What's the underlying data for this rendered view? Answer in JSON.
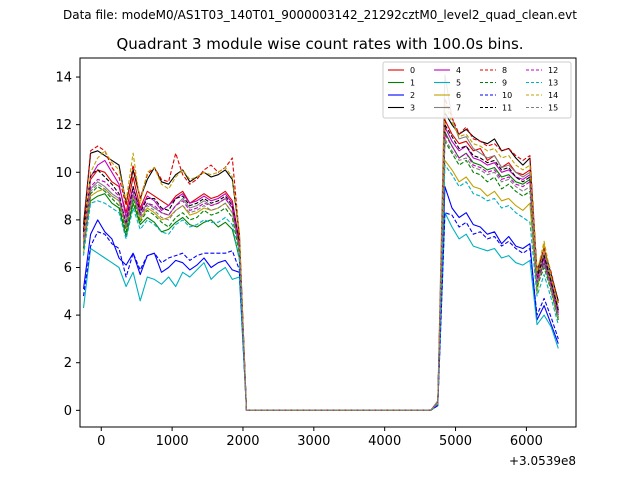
{
  "suptitle": "Data file: modeM0/AS1T03_140T01_9000003142_21292cztM0_level2_quad_clean.evt",
  "chart_data": {
    "type": "line",
    "title": "Quadrant 3 module wise count rates with 100.0s bins.",
    "xlabel": "",
    "ylabel": "",
    "offset_text": "+3.0539e8",
    "xlim": [
      -300,
      6700
    ],
    "ylim": [
      -0.7,
      14.8
    ],
    "xticks": [
      0,
      1000,
      2000,
      3000,
      4000,
      5000,
      6000
    ],
    "xtick_labels": [
      "0",
      "1000",
      "2000",
      "3000",
      "4000",
      "5000",
      "6000"
    ],
    "yticks": [
      0,
      2,
      4,
      6,
      8,
      10,
      12,
      14
    ],
    "ytick_labels": [
      "0",
      "2",
      "4",
      "6",
      "8",
      "10",
      "12",
      "14"
    ],
    "legend_placement": "top-right",
    "legend_columns": 4,
    "x_segments": [
      {
        "start": -250,
        "step": 100,
        "count": 23
      },
      {
        "start": 2050,
        "step": 100,
        "count": 27
      },
      {
        "start": 4750,
        "step": 100,
        "count": 18
      }
    ],
    "gap_value": 0,
    "series": [
      {
        "name": "0",
        "color": "#e00000",
        "dash": "solid",
        "seg1": [
          7.3,
          9.7,
          10.1,
          10.0,
          9.6,
          9.4,
          8.3,
          9.8,
          8.5,
          9.2,
          9.0,
          8.8,
          8.6,
          9.0,
          9.2,
          8.7,
          8.9,
          9.1,
          8.9,
          9.0,
          9.2,
          8.8,
          7.1
        ],
        "seg3": [
          0.3,
          12.2,
          11.6,
          11.2,
          11.3,
          10.9,
          11.0,
          10.5,
          10.7,
          10.2,
          10.4,
          10.0,
          9.9,
          10.1,
          5.7,
          6.5,
          5.4,
          4.2
        ]
      },
      {
        "name": "1",
        "color": "#008000",
        "dash": "solid",
        "seg1": [
          6.9,
          8.8,
          9.0,
          9.1,
          8.7,
          8.5,
          7.3,
          8.7,
          7.8,
          8.1,
          7.9,
          7.5,
          7.6,
          7.9,
          8.1,
          7.8,
          7.7,
          7.9,
          8.0,
          7.7,
          7.9,
          7.6,
          6.4
        ],
        "seg3": [
          0.3,
          11.7,
          11.1,
          10.6,
          10.8,
          10.4,
          10.3,
          10.1,
          10.2,
          9.8,
          9.9,
          9.6,
          9.5,
          9.7,
          5.3,
          6.2,
          5.1,
          3.9
        ]
      },
      {
        "name": "2",
        "color": "#0000ff",
        "dash": "solid",
        "seg1": [
          5.1,
          7.4,
          8.0,
          7.5,
          7.2,
          6.4,
          6.1,
          6.6,
          5.7,
          6.5,
          6.6,
          5.8,
          6.0,
          6.3,
          6.2,
          5.9,
          6.1,
          6.4,
          6.0,
          6.2,
          6.3,
          5.9,
          5.8
        ],
        "seg3": [
          0.2,
          9.4,
          8.5,
          8.1,
          8.3,
          7.8,
          7.7,
          7.4,
          7.5,
          7.0,
          7.3,
          6.9,
          6.8,
          7.0,
          3.8,
          4.4,
          3.6,
          2.8
        ]
      },
      {
        "name": "3",
        "color": "#000000",
        "dash": "solid",
        "seg1": [
          7.8,
          10.8,
          10.9,
          10.7,
          10.5,
          10.3,
          8.7,
          10.1,
          8.9,
          9.7,
          10.2,
          9.6,
          9.5,
          9.9,
          10.1,
          9.6,
          9.8,
          10.0,
          9.8,
          9.9,
          10.1,
          9.7,
          7.4
        ],
        "seg3": [
          0.3,
          12.5,
          12.0,
          11.6,
          11.8,
          11.5,
          11.3,
          11.2,
          11.4,
          10.9,
          11.0,
          10.6,
          10.3,
          10.6,
          5.8,
          6.8,
          5.7,
          4.6
        ]
      },
      {
        "name": "4",
        "color": "#c000c0",
        "dash": "solid",
        "seg1": [
          7.2,
          9.8,
          10.3,
          10.5,
          10.0,
          9.5,
          8.1,
          9.4,
          8.4,
          9.0,
          8.8,
          8.4,
          8.6,
          8.9,
          9.1,
          8.7,
          8.8,
          9.0,
          8.8,
          8.9,
          9.1,
          8.7,
          7.0
        ],
        "seg3": [
          0.3,
          11.9,
          11.3,
          10.9,
          11.1,
          10.6,
          10.5,
          10.3,
          10.4,
          10.0,
          10.1,
          9.8,
          9.7,
          9.9,
          5.5,
          6.4,
          5.3,
          4.1
        ]
      },
      {
        "name": "5",
        "color": "#00b0c0",
        "dash": "solid",
        "seg1": [
          4.3,
          6.8,
          6.6,
          6.4,
          6.2,
          6.0,
          5.2,
          5.8,
          4.6,
          5.6,
          5.5,
          5.3,
          5.6,
          5.2,
          5.8,
          5.6,
          5.9,
          6.2,
          5.5,
          5.8,
          6.0,
          5.5,
          5.6
        ],
        "seg3": [
          0.2,
          8.3,
          7.7,
          7.2,
          7.4,
          6.9,
          6.8,
          6.7,
          6.8,
          6.4,
          6.5,
          6.2,
          6.1,
          6.3,
          3.6,
          4.0,
          3.5,
          2.6
        ]
      },
      {
        "name": "6",
        "color": "#c0a000",
        "dash": "solid",
        "seg1": [
          6.6,
          9.0,
          9.2,
          9.3,
          9.0,
          8.8,
          7.6,
          9.0,
          8.0,
          8.5,
          8.3,
          8.0,
          8.1,
          8.4,
          8.6,
          8.2,
          8.3,
          8.5,
          8.4,
          8.5,
          8.7,
          8.3,
          6.8
        ],
        "seg3": [
          0.3,
          10.5,
          10.1,
          9.6,
          9.8,
          9.4,
          9.3,
          9.0,
          9.2,
          8.8,
          8.9,
          8.6,
          8.4,
          8.7,
          4.9,
          7.0,
          5.0,
          3.8
        ]
      },
      {
        "name": "7",
        "color": "#808080",
        "dash": "solid",
        "seg1": [
          6.8,
          9.3,
          9.6,
          9.4,
          9.1,
          8.9,
          7.9,
          9.1,
          8.2,
          8.7,
          8.5,
          8.3,
          8.2,
          8.6,
          8.9,
          8.5,
          8.6,
          8.8,
          8.6,
          8.7,
          8.9,
          8.5,
          6.9
        ],
        "seg3": [
          0.4,
          14.1,
          12.3,
          11.4,
          11.5,
          11.0,
          10.8,
          10.6,
          10.7,
          10.2,
          10.3,
          10.0,
          9.8,
          10.0,
          5.6,
          6.6,
          5.5,
          4.3
        ]
      },
      {
        "name": "8",
        "color": "#e00000",
        "dash": "dashed",
        "seg1": [
          7.6,
          10.9,
          11.1,
          10.9,
          10.2,
          9.8,
          8.6,
          10.3,
          8.9,
          9.9,
          10.2,
          9.7,
          9.6,
          10.8,
          9.9,
          9.5,
          9.7,
          10.1,
          10.3,
          10.0,
          10.2,
          10.6,
          7.3
        ],
        "seg3": [
          0.3,
          13.1,
          12.3,
          11.6,
          11.9,
          11.4,
          11.3,
          11.1,
          11.2,
          10.9,
          11.0,
          10.7,
          10.5,
          10.7,
          5.9,
          6.8,
          5.8,
          4.5
        ]
      },
      {
        "name": "9",
        "color": "#008000",
        "dash": "dashed",
        "seg1": [
          6.8,
          9.1,
          9.4,
          9.2,
          8.9,
          8.6,
          7.5,
          8.9,
          7.9,
          8.4,
          8.2,
          7.9,
          7.7,
          8.1,
          8.3,
          8.0,
          8.1,
          8.4,
          8.2,
          8.3,
          8.5,
          8.1,
          6.6
        ],
        "seg3": [
          0.3,
          11.3,
          10.8,
          10.3,
          10.5,
          10.0,
          9.9,
          9.6,
          9.8,
          9.3,
          9.5,
          9.2,
          9.0,
          9.2,
          5.2,
          6.0,
          5.0,
          3.8
        ]
      },
      {
        "name": "10",
        "color": "#0000ff",
        "dash": "dashed",
        "seg1": [
          4.8,
          6.9,
          7.5,
          7.4,
          7.0,
          6.8,
          5.6,
          6.6,
          5.9,
          6.5,
          6.6,
          6.2,
          6.4,
          6.5,
          6.6,
          6.3,
          6.5,
          6.6,
          6.6,
          6.6,
          6.6,
          6.7,
          5.9
        ],
        "seg3": [
          0.2,
          8.3,
          8.2,
          7.7,
          7.9,
          7.4,
          7.5,
          7.2,
          7.3,
          6.9,
          7.1,
          6.8,
          6.6,
          6.8,
          4.0,
          4.7,
          3.9,
          3.0
        ]
      },
      {
        "name": "11",
        "color": "#000000",
        "dash": "dashed",
        "seg1": [
          7.5,
          9.9,
          10.1,
          9.8,
          9.5,
          9.1,
          7.8,
          9.4,
          8.3,
          8.9,
          8.9,
          8.5,
          8.4,
          8.9,
          9.0,
          8.6,
          8.7,
          8.9,
          8.7,
          8.8,
          9.0,
          8.6,
          7.0
        ],
        "seg3": [
          0.3,
          12.0,
          11.5,
          11.0,
          11.1,
          10.7,
          10.6,
          10.4,
          10.5,
          10.1,
          10.2,
          9.8,
          9.6,
          9.8,
          5.6,
          6.5,
          5.4,
          4.2
        ]
      },
      {
        "name": "12",
        "color": "#c000c0",
        "dash": "dashed",
        "seg1": [
          7.0,
          9.4,
          9.7,
          9.6,
          9.3,
          9.0,
          7.7,
          9.2,
          8.2,
          8.7,
          8.6,
          8.3,
          8.2,
          8.6,
          8.8,
          8.4,
          8.5,
          8.7,
          8.6,
          8.7,
          8.9,
          8.5,
          6.9
        ],
        "seg3": [
          0.3,
          11.6,
          11.1,
          10.6,
          10.8,
          10.3,
          10.2,
          10.0,
          10.1,
          9.7,
          9.8,
          9.5,
          9.4,
          9.6,
          5.4,
          6.3,
          5.2,
          4.0
        ]
      },
      {
        "name": "13",
        "color": "#00b0c0",
        "dash": "dashed",
        "seg1": [
          6.5,
          8.7,
          8.8,
          8.7,
          8.5,
          8.3,
          7.2,
          8.5,
          7.6,
          8.0,
          7.8,
          7.5,
          7.4,
          7.8,
          8.0,
          7.7,
          7.8,
          8.0,
          7.9,
          7.9,
          8.1,
          7.8,
          6.3
        ],
        "seg3": [
          0.3,
          10.3,
          9.9,
          9.4,
          9.6,
          9.1,
          9.0,
          8.8,
          8.9,
          8.5,
          8.6,
          8.3,
          8.1,
          7.9,
          4.8,
          5.7,
          4.7,
          3.6
        ]
      },
      {
        "name": "14",
        "color": "#c0a000",
        "dash": "dashed",
        "seg1": [
          7.1,
          10.0,
          10.6,
          10.9,
          10.4,
          10.1,
          8.8,
          10.8,
          8.7,
          10.0,
          10.2,
          9.5,
          9.3,
          9.8,
          10.1,
          9.7,
          9.8,
          10.0,
          9.9,
          10.0,
          10.2,
          9.8,
          7.5
        ],
        "seg3": [
          0.3,
          12.9,
          12.1,
          11.5,
          11.6,
          11.2,
          11.1,
          10.9,
          11.0,
          10.6,
          10.7,
          10.3,
          10.1,
          10.3,
          5.8,
          7.1,
          5.6,
          4.4
        ]
      },
      {
        "name": "15",
        "color": "#808080",
        "dash": "dashed",
        "seg1": [
          6.9,
          9.2,
          9.5,
          9.3,
          9.0,
          8.8,
          7.7,
          9.0,
          8.1,
          8.6,
          8.4,
          8.1,
          8.0,
          8.4,
          8.6,
          8.3,
          8.4,
          8.6,
          8.4,
          8.5,
          8.7,
          8.3,
          6.7
        ],
        "seg3": [
          0.3,
          11.4,
          10.9,
          10.5,
          10.6,
          10.2,
          10.1,
          9.9,
          10.0,
          9.6,
          9.7,
          9.4,
          9.2,
          9.4,
          5.3,
          6.1,
          5.1,
          3.9
        ]
      }
    ]
  }
}
